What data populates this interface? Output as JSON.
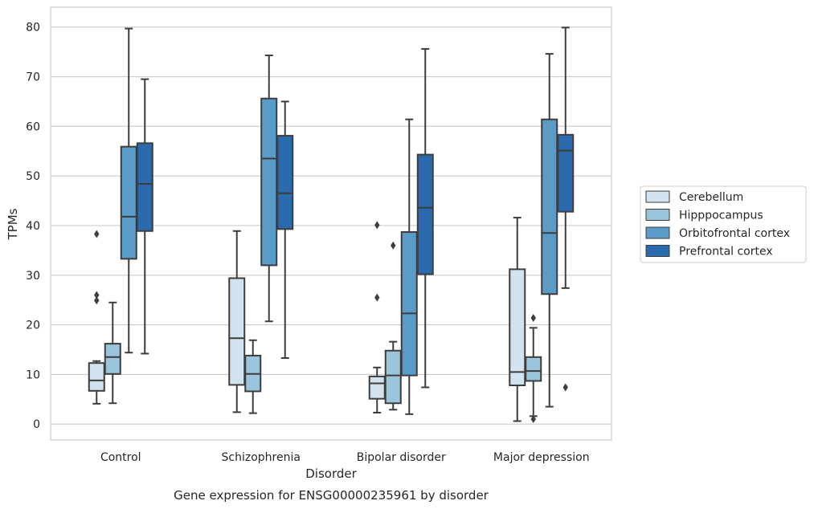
{
  "caption": "Gene expression for ENSG00000235961 by disorder",
  "chart_data": {
    "type": "box",
    "xlabel": "Disorder",
    "ylabel": "TPMs",
    "ylim": [
      -3.2,
      84
    ],
    "yticks": [
      0,
      10,
      20,
      30,
      40,
      50,
      60,
      70,
      80
    ],
    "grid": true,
    "legend_position": "right",
    "categories": [
      "Control",
      "Schizophrenia",
      "Bipolar disorder",
      "Major depression"
    ],
    "series": [
      {
        "name": "Cerebellum",
        "color": "#d3e2ef",
        "boxes": [
          {
            "whislo": 4.1,
            "q1": 6.7,
            "med": 8.8,
            "q3": 12.3,
            "whishi": 12.7,
            "fliers": [
              24.9,
              26.0,
              38.3
            ]
          },
          {
            "whislo": 2.4,
            "q1": 7.9,
            "med": 17.3,
            "q3": 29.4,
            "whishi": 38.9,
            "fliers": []
          },
          {
            "whislo": 2.3,
            "q1": 5.1,
            "med": 8.2,
            "q3": 9.6,
            "whishi": 11.4,
            "fliers": [
              25.5,
              40.1
            ]
          },
          {
            "whislo": 0.6,
            "q1": 7.8,
            "med": 10.5,
            "q3": 31.2,
            "whishi": 41.6,
            "fliers": []
          }
        ]
      },
      {
        "name": "Hipppocampus",
        "color": "#9ac3dc",
        "boxes": [
          {
            "whislo": 4.2,
            "q1": 10.1,
            "med": 13.5,
            "q3": 16.2,
            "whishi": 24.5,
            "fliers": []
          },
          {
            "whislo": 2.2,
            "q1": 6.6,
            "med": 10.1,
            "q3": 13.8,
            "whishi": 16.9,
            "fliers": []
          },
          {
            "whislo": 2.9,
            "q1": 4.2,
            "med": 9.8,
            "q3": 14.8,
            "whishi": 16.6,
            "fliers": [
              36.0
            ]
          },
          {
            "whislo": 1.6,
            "q1": 8.7,
            "med": 10.7,
            "q3": 13.5,
            "whishi": 19.4,
            "fliers": [
              1.0,
              21.4
            ]
          }
        ]
      },
      {
        "name": "Orbitofrontal cortex",
        "color": "#5a9bc8",
        "boxes": [
          {
            "whislo": 14.4,
            "q1": 33.3,
            "med": 41.8,
            "q3": 55.9,
            "whishi": 79.7,
            "fliers": []
          },
          {
            "whislo": 20.7,
            "q1": 32.0,
            "med": 53.5,
            "q3": 65.6,
            "whishi": 74.3,
            "fliers": []
          },
          {
            "whislo": 2.0,
            "q1": 9.8,
            "med": 22.3,
            "q3": 38.7,
            "whishi": 61.4,
            "fliers": []
          },
          {
            "whislo": 3.5,
            "q1": 26.2,
            "med": 38.5,
            "q3": 61.4,
            "whishi": 74.6,
            "fliers": []
          }
        ]
      },
      {
        "name": "Prefrontal cortex",
        "color": "#2a6aad",
        "boxes": [
          {
            "whislo": 14.2,
            "q1": 38.9,
            "med": 48.4,
            "q3": 56.6,
            "whishi": 69.5,
            "fliers": []
          },
          {
            "whislo": 13.3,
            "q1": 39.3,
            "med": 46.5,
            "q3": 58.1,
            "whishi": 65.0,
            "fliers": []
          },
          {
            "whislo": 7.4,
            "q1": 30.2,
            "med": 43.6,
            "q3": 54.3,
            "whishi": 75.6,
            "fliers": []
          },
          {
            "whislo": 27.4,
            "q1": 42.8,
            "med": 55.1,
            "q3": 58.3,
            "whishi": 79.9,
            "fliers": [
              7.4
            ]
          }
        ]
      }
    ]
  }
}
